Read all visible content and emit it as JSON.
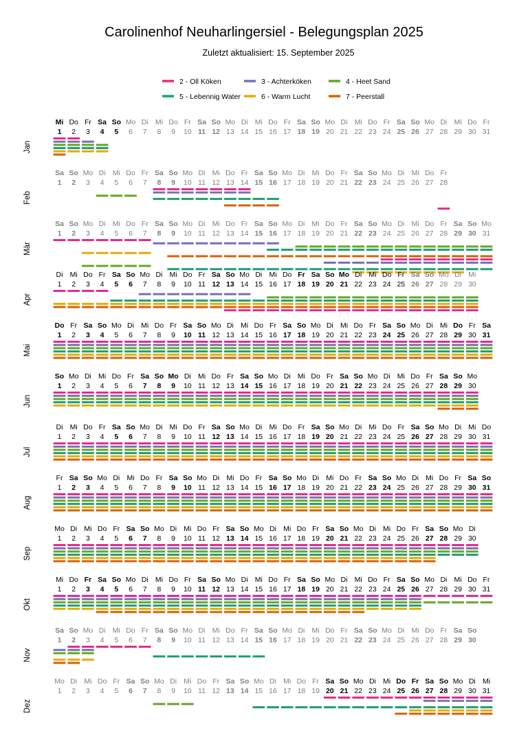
{
  "chart_data": {
    "type": "timeline",
    "title": "Carolinenhof Neuharlingersiel - Belegungsplan 2025",
    "subtitle": "Zuletzt aktualisiert: 15. September 2025",
    "year": 2025,
    "legend_placement": "top-center",
    "series": [
      {
        "name": "2 - Oll Köken",
        "color": "#e7298a"
      },
      {
        "name": "3 - Achterköken",
        "color": "#7570b3"
      },
      {
        "name": "4 - Heet Sand",
        "color": "#66a61e"
      },
      {
        "name": "5 - Lebennig Water",
        "color": "#1b9e77"
      },
      {
        "name": "6 - Warm Lucht",
        "color": "#e6ab02"
      },
      {
        "name": "7 - Peerstall",
        "color": "#d95f02"
      }
    ],
    "months": [
      {
        "label": "Jan",
        "first_weekday": 2,
        "days": 31
      },
      {
        "label": "Feb",
        "first_weekday": 5,
        "days": 28
      },
      {
        "label": "Mär",
        "first_weekday": 5,
        "days": 31
      },
      {
        "label": "Apr",
        "first_weekday": 1,
        "days": 30
      },
      {
        "label": "Mai",
        "first_weekday": 3,
        "days": 31
      },
      {
        "label": "Jun",
        "first_weekday": 6,
        "days": 30
      },
      {
        "label": "Jul",
        "first_weekday": 1,
        "days": 31
      },
      {
        "label": "Aug",
        "first_weekday": 4,
        "days": 31
      },
      {
        "label": "Sep",
        "first_weekday": 0,
        "days": 30
      },
      {
        "label": "Okt",
        "first_weekday": 2,
        "days": 31
      },
      {
        "label": "Nov",
        "first_weekday": 5,
        "days": 30
      },
      {
        "label": "Dez",
        "first_weekday": 0,
        "days": 31
      }
    ],
    "weekday_labels": [
      "Mo",
      "Di",
      "Mi",
      "Do",
      "Fr",
      "Sa",
      "So"
    ],
    "day_label_style": {
      "Jan": {
        "bold": [
          1,
          4,
          5,
          11,
          12,
          18,
          19,
          25,
          26
        ],
        "grey": [
          6,
          7,
          8,
          9,
          10,
          11,
          12,
          13,
          14,
          15,
          16,
          17,
          18,
          19,
          20,
          21,
          22,
          23,
          24,
          25,
          26,
          27,
          28,
          29,
          30,
          31
        ]
      },
      "Feb": {
        "bold": [
          1,
          2,
          8,
          9,
          15,
          16,
          22,
          23
        ],
        "grey": [
          1,
          2,
          3,
          4,
          5,
          6,
          7,
          8,
          9,
          10,
          11,
          12,
          13,
          14,
          15,
          16,
          17,
          18,
          19,
          20,
          21,
          22,
          23,
          24,
          25,
          26,
          27,
          28
        ]
      },
      "Mär": {
        "bold": [
          1,
          2,
          8,
          9,
          15,
          16,
          22,
          23,
          29,
          30
        ],
        "grey": [
          1,
          2,
          3,
          4,
          5,
          6,
          7,
          8,
          9,
          10,
          11,
          12,
          13,
          14,
          15,
          16,
          17,
          18,
          19,
          20,
          21,
          22,
          23,
          24,
          25,
          26,
          27,
          28,
          29,
          30,
          31
        ]
      },
      "Apr": {
        "bold": [
          5,
          6,
          12,
          13,
          18,
          19,
          20,
          21,
          26,
          27
        ],
        "grey": [
          26,
          27,
          28,
          29,
          30
        ]
      },
      "Mai": {
        "bold": [
          1,
          3,
          4,
          10,
          11,
          17,
          18,
          24,
          25,
          29,
          31
        ],
        "grey": []
      },
      "Jun": {
        "bold": [
          1,
          7,
          8,
          9,
          14,
          15,
          21,
          22,
          28,
          29
        ],
        "grey": []
      },
      "Jul": {
        "bold": [
          5,
          6,
          12,
          13,
          19,
          20,
          26,
          27
        ],
        "grey": []
      },
      "Aug": {
        "bold": [
          2,
          3,
          9,
          10,
          16,
          17,
          23,
          24,
          30,
          31
        ],
        "grey": []
      },
      "Sep": {
        "bold": [
          6,
          7,
          13,
          14,
          20,
          21,
          27,
          28
        ],
        "grey": []
      },
      "Okt": {
        "bold": [
          3,
          4,
          5,
          11,
          12,
          18,
          19,
          25,
          26
        ],
        "grey": []
      },
      "Nov": {
        "bold": [
          1,
          2,
          8,
          9,
          15,
          16,
          22,
          23,
          29,
          30
        ],
        "grey": [
          1,
          2,
          3,
          4,
          5,
          6,
          7,
          8,
          9,
          10,
          11,
          12,
          13,
          14,
          15,
          16,
          17,
          18,
          19,
          20,
          21,
          22,
          23,
          24,
          25,
          26,
          27,
          28,
          29,
          30
        ]
      },
      "Dez": {
        "bold": [
          6,
          7,
          13,
          14,
          20,
          21,
          25,
          26,
          27,
          28
        ],
        "grey": [
          1,
          2,
          3,
          4,
          5,
          6,
          7,
          8,
          9,
          10,
          11,
          12,
          13,
          14,
          15,
          16,
          17,
          18,
          19
        ]
      }
    },
    "occupancy": {
      "Jan": [
        [
          1,
          2
        ],
        [
          1,
          3
        ],
        [
          1,
          4
        ],
        [
          1,
          4
        ],
        [
          1,
          4
        ],
        [
          1,
          1
        ]
      ],
      "Feb": [
        [
          8,
          14
        ],
        [
          8,
          14
        ],
        [
          4,
          6
        ],
        [
          8,
          16
        ],
        [],
        [
          13,
          16
        ],
        [
          28,
          28
        ]
      ],
      "Mär": [
        [
          1,
          7
        ],
        [
          8,
          16
        ],
        [
          18,
          31
        ],
        [
          16,
          31
        ],
        [
          3,
          7
        ],
        [
          9,
          31
        ],
        [
          24,
          31
        ],
        [
          20,
          31
        ],
        [
          3,
          7
        ],
        [
          9,
          31
        ],
        [
          22,
          29
        ]
      ],
      "Apr": [
        [
          1,
          4
        ],
        [
          7,
          14
        ],
        [
          16,
          30
        ],
        [
          5,
          30
        ],
        [
          1,
          30
        ],
        [
          1,
          30
        ],
        [
          13,
          30
        ]
      ],
      "Mai": [
        [
          1,
          31
        ],
        [
          1,
          31
        ],
        [
          1,
          31
        ],
        [
          1,
          31
        ],
        [
          1,
          31
        ],
        [
          1,
          31
        ]
      ],
      "Jun": [
        [
          1,
          30
        ],
        [
          1,
          30
        ],
        [
          1,
          30
        ],
        [
          1,
          30
        ],
        [
          1,
          30
        ],
        [
          28,
          30
        ]
      ],
      "Jul": [
        [
          1,
          31
        ],
        [
          1,
          31
        ],
        [
          1,
          31
        ],
        [
          1,
          31
        ],
        [
          1,
          31
        ],
        [
          1,
          31
        ]
      ],
      "Aug": [
        [
          1,
          31
        ],
        [
          1,
          31
        ],
        [
          1,
          31
        ],
        [
          1,
          31
        ],
        [
          1,
          31
        ],
        [
          1,
          31
        ]
      ],
      "Sep": [
        [
          1,
          30
        ],
        [
          1,
          30
        ],
        [
          1,
          30
        ],
        [
          1,
          30
        ],
        [
          1,
          27
        ],
        [
          1,
          27
        ]
      ],
      "Okt": [
        [
          1,
          31
        ],
        [
          1,
          26
        ],
        [
          1,
          31
        ],
        [
          1,
          26
        ],
        [
          1,
          26
        ],
        [
          4,
          22
        ]
      ],
      "Nov": [
        [
          2,
          7
        ],
        [
          1,
          3
        ],
        [
          1,
          3
        ],
        [
          8,
          15
        ],
        [
          1,
          3
        ],
        [
          1,
          2
        ]
      ],
      "Dez": [
        [
          20,
          31
        ],
        [
          27,
          31
        ],
        [
          8,
          10
        ],
        [
          15,
          31
        ],
        [
          26,
          31
        ],
        [
          25,
          31
        ]
      ]
    }
  }
}
